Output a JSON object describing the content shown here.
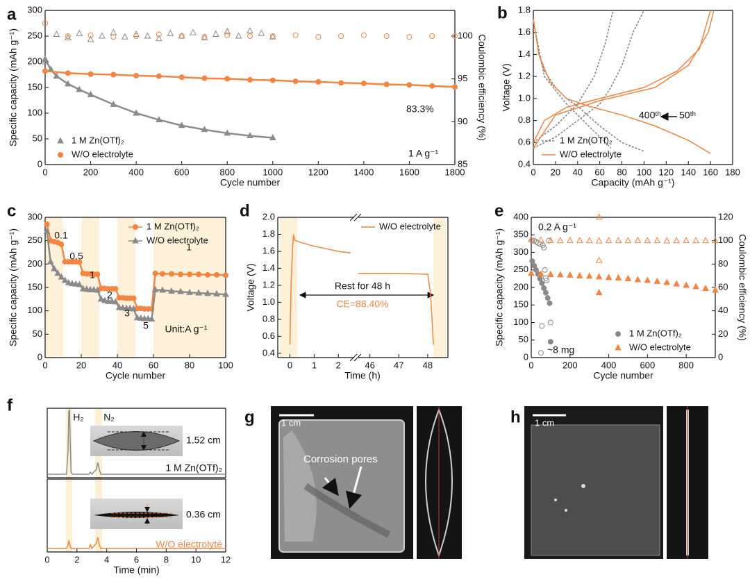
{
  "chart_data": [
    {
      "type": "line",
      "label": "a",
      "xlabel": "Cycle number",
      "ylabel": "Specific capacity (mAh g⁻¹)",
      "y2label": "Coulombic efficiency (%)",
      "xlim": [
        0,
        1800
      ],
      "xticks": [
        0,
        200,
        400,
        600,
        800,
        1000,
        1200,
        1400,
        1600,
        1800
      ],
      "ylim": [
        0,
        300
      ],
      "yticks": [
        0,
        50,
        100,
        150,
        200,
        250,
        300
      ],
      "y2lim": [
        85,
        103
      ],
      "y2ticks": [
        85,
        90,
        95,
        100
      ],
      "legend": "lower left",
      "series": [
        {
          "name": "1 M Zn(OTf)₂",
          "color": "#8a8a8a",
          "marker": "triangle",
          "x": [
            0,
            25,
            50,
            100,
            150,
            200,
            300,
            400,
            500,
            600,
            700,
            800,
            900,
            1000
          ],
          "values": [
            205,
            185,
            172,
            157,
            146,
            136,
            117,
            100,
            87,
            76,
            68,
            61,
            56,
            52
          ]
        },
        {
          "name": "W/O electrolyte",
          "color": "#f4843f",
          "marker": "circle",
          "x": [
            0,
            100,
            200,
            300,
            400,
            500,
            600,
            700,
            800,
            900,
            1000,
            1100,
            1200,
            1300,
            1400,
            1500,
            1600,
            1700,
            1800
          ],
          "values": [
            182,
            178,
            176,
            175,
            173,
            172,
            170,
            168,
            167,
            165,
            164,
            162,
            161,
            159,
            158,
            156,
            155,
            153,
            151
          ]
        },
        {
          "color": "#8a8a8a",
          "marker": "open-triangle",
          "line": false,
          "axis": "y2",
          "x": [
            0,
            50,
            100,
            150,
            200,
            250,
            300,
            350,
            400,
            450,
            500,
            550,
            600,
            650,
            700,
            750,
            800,
            850,
            900,
            950,
            1000
          ],
          "values": [
            97,
            100.2,
            99.8,
            100.3,
            99.6,
            100,
            100.4,
            99.9,
            100.2,
            100,
            99.7,
            100.3,
            100,
            100.4,
            99.8,
            100.2,
            100.5,
            100,
            100.6,
            100.3,
            99.9
          ]
        },
        {
          "color": "#f4843f",
          "marker": "open-circle",
          "line": false,
          "axis": "y2",
          "x": [
            0,
            100,
            200,
            300,
            400,
            500,
            600,
            700,
            800,
            900,
            1000,
            1100,
            1200,
            1300,
            1400,
            1500,
            1600,
            1700,
            1800
          ],
          "values": [
            101.5,
            100,
            100.1,
            99.9,
            100,
            100.2,
            100,
            99.9,
            100.1,
            100,
            100,
            100.1,
            99.9,
            100,
            100.1,
            100,
            99.9,
            100,
            100
          ]
        }
      ],
      "annotations": [
        {
          "text": "83.3%"
        },
        {
          "text": "1 A g⁻¹"
        }
      ]
    },
    {
      "type": "line",
      "label": "b",
      "xlabel": "Capacity (mAh g⁻¹)",
      "ylabel": "Voltage (V)",
      "xlim": [
        0,
        180
      ],
      "xticks": [
        0,
        20,
        40,
        60,
        80,
        100,
        120,
        140,
        160,
        180
      ],
      "ylim": [
        0.4,
        1.8
      ],
      "yticks": [
        0.4,
        0.6,
        0.8,
        {
          "value": 1,
          "label": "1.0"
        },
        1.2,
        1.4,
        1.6,
        1.8
      ],
      "legend": "lower left",
      "series": [
        {
          "name": "1 M Zn(OTf)₂",
          "color": "#7f7f7f",
          "dash": true,
          "x": [
            0,
            5,
            10,
            20,
            30,
            40,
            60,
            80,
            100,
            null,
            0,
            20,
            40,
            60,
            70,
            80,
            90,
            100,
            null,
            0,
            10,
            30,
            50,
            70,
            null,
            0,
            20,
            40,
            55,
            65,
            72
          ],
          "values": [
            1.72,
            1.4,
            1.25,
            1.1,
            1.0,
            0.93,
            0.75,
            0.6,
            0.52,
            null,
            0.55,
            0.65,
            0.8,
            0.95,
            1.1,
            1.3,
            1.6,
            1.8,
            null,
            1.7,
            1.2,
            0.95,
            0.75,
            0.55,
            null,
            0.6,
            0.75,
            0.95,
            1.2,
            1.5,
            1.8
          ]
        },
        {
          "name": "W/O electrolyte",
          "color": "#f4843f",
          "x": [
            0,
            5,
            15,
            30,
            50,
            80,
            110,
            140,
            160,
            null,
            0,
            10,
            30,
            60,
            100,
            130,
            150,
            160,
            null,
            0,
            20,
            60,
            110,
            140,
            158,
            163
          ],
          "values": [
            1.72,
            1.4,
            1.15,
            1.0,
            0.93,
            0.85,
            0.75,
            0.62,
            0.5,
            null,
            0.6,
            0.8,
            0.92,
            1.0,
            1.1,
            1.25,
            1.45,
            1.8,
            null,
            0.55,
            0.85,
            0.98,
            1.1,
            1.3,
            1.6,
            1.8
          ]
        }
      ],
      "annotations": [
        {
          "text": "400ᵗʰ"
        },
        {
          "text": "50ᵗʰ"
        }
      ]
    },
    {
      "type": "line",
      "label": "c",
      "xlabel": "Cycle number",
      "ylabel": "Specific capacity (mAh g⁻¹)",
      "xlim": [
        0,
        100
      ],
      "xticks": [
        0,
        20,
        40,
        60,
        80,
        100
      ],
      "ylim": [
        0,
        300
      ],
      "yticks": [
        0,
        50,
        100,
        150,
        200,
        250,
        300
      ],
      "legend": "upper right",
      "series": [
        {
          "name": "1 M Zn(OTf)₂",
          "color": "#f4843f",
          "marker": "circle",
          "x": [
            1,
            3,
            5,
            7,
            9,
            11,
            13,
            15,
            17,
            19,
            21,
            23,
            25,
            27,
            29,
            31,
            33,
            35,
            37,
            39,
            41,
            43,
            45,
            47,
            49,
            51,
            53,
            55,
            57,
            59,
            61,
            65,
            70,
            75,
            80,
            85,
            90,
            95,
            100
          ],
          "values": [
            285,
            250,
            248,
            246,
            242,
            205,
            205,
            205,
            205,
            204,
            180,
            179,
            179,
            178,
            178,
            148,
            148,
            147,
            147,
            147,
            128,
            128,
            127,
            127,
            127,
            105,
            105,
            104,
            104,
            104,
            180,
            179,
            179,
            178,
            178,
            178,
            177,
            177,
            176
          ]
        },
        {
          "name": "W/O electrolyte",
          "color": "#8a8a8a",
          "marker": "triangle",
          "x": [
            1,
            3,
            5,
            7,
            9,
            11,
            13,
            15,
            17,
            19,
            21,
            23,
            25,
            27,
            29,
            31,
            33,
            35,
            37,
            39,
            41,
            43,
            45,
            47,
            49,
            51,
            53,
            55,
            57,
            59,
            61,
            65,
            70,
            75,
            80,
            85,
            90,
            95,
            100
          ],
          "values": [
            270,
            205,
            190,
            180,
            172,
            165,
            160,
            158,
            157,
            156,
            147,
            146,
            145,
            145,
            144,
            125,
            122,
            120,
            120,
            119,
            107,
            106,
            105,
            105,
            104,
            85,
            84,
            83,
            83,
            82,
            145,
            144,
            142,
            141,
            139,
            138,
            137,
            136,
            135
          ]
        }
      ],
      "annotations": [
        {
          "text": "0.1"
        },
        {
          "text": "0.5"
        },
        {
          "text": "1"
        },
        {
          "text": "2"
        },
        {
          "text": "3"
        },
        {
          "text": "5"
        },
        {
          "text": "1"
        },
        {
          "text": "Unit:A g⁻¹"
        }
      ]
    },
    {
      "type": "line",
      "label": "d",
      "ylabel": "Voltage (V)",
      "xlim": [
        -0.5,
        2.65
      ],
      "xticks": [
        0,
        1,
        2
      ],
      "ylim": [
        0.35,
        2.0
      ],
      "yticks": [
        0.4,
        0.6,
        0.8,
        {
          "value": 1,
          "label": "1.0"
        },
        1.2,
        1.4,
        1.6,
        1.8,
        {
          "value": 2,
          "label": "2.0"
        }
      ],
      "series": [
        {
          "color": "#f4843f",
          "x": [
            0,
            0.05,
            0.1,
            0.15,
            0.2,
            0.5,
            1,
            1.5,
            2,
            2.5
          ],
          "values": [
            0.5,
            1.2,
            1.6,
            1.8,
            1.73,
            1.7,
            1.66,
            1.63,
            1.6,
            1.58
          ]
        }
      ]
    },
    {
      "type": "line",
      "xlabel": "Time (h)",
      "xlim": [
        45.6,
        48.7
      ],
      "xticks": [
        46,
        47,
        48
      ],
      "ylim": [
        0.35,
        2.0
      ],
      "legend": "upper right",
      "series": [
        {
          "name": "W/O electrolyte",
          "color": "#f4843f",
          "x": [
            45.6,
            46,
            47,
            48,
            48.1,
            48.15,
            48.2
          ],
          "values": [
            1.34,
            1.34,
            1.34,
            1.33,
            1.1,
            0.8,
            0.5
          ]
        }
      ],
      "annotations": [
        {
          "text": "Rest for 48 h"
        },
        {
          "text": "CE=88.40%",
          "color": "#f4843f"
        }
      ]
    },
    {
      "type": "scatter",
      "label": "e",
      "xlabel": "Cycle number",
      "ylabel": "Specific capacity (mAh g⁻¹)",
      "y2label": "Coulombic efficiency (%)",
      "xlim": [
        0,
        950
      ],
      "xticks": [
        0,
        200,
        400,
        600,
        800
      ],
      "ylim": [
        0,
        400
      ],
      "yticks": [
        0,
        50,
        100,
        150,
        200,
        250,
        300,
        350,
        400
      ],
      "y2lim": [
        0,
        120
      ],
      "y2ticks": [
        0,
        20,
        40,
        60,
        80,
        100,
        120
      ],
      "legend": "lower right",
      "series": [
        {
          "name": "1 M Zn(OTf)₂",
          "color": "#8a8a8a",
          "marker": "circle",
          "x": [
            5,
            15,
            25,
            35,
            45,
            55,
            65,
            75,
            85,
            95,
            100
          ],
          "values": [
            275,
            262,
            250,
            238,
            225,
            212,
            198,
            185,
            170,
            155,
            45
          ]
        },
        {
          "name": "W/O electrolyte",
          "color": "#f4843f",
          "marker": "triangle",
          "x": [
            0,
            50,
            100,
            150,
            200,
            250,
            300,
            350,
            400,
            450,
            500,
            550,
            600,
            650,
            700,
            750,
            800,
            850,
            900,
            950,
            350
          ],
          "values": [
            240,
            238,
            237,
            236,
            235,
            233,
            232,
            230,
            228,
            227,
            225,
            222,
            220,
            217,
            214,
            210,
            206,
            202,
            197,
            192,
            185
          ]
        },
        {
          "color": "#8a8a8a",
          "marker": "open-circle",
          "axis": "y2",
          "x": [
            5,
            15,
            25,
            35,
            45,
            50,
            55,
            60,
            65,
            70,
            75,
            80,
            90,
            100
          ],
          "values": [
            100,
            100,
            99,
            98,
            97,
            4,
            27,
            96,
            94,
            75,
            68,
            66,
            100,
            30
          ]
        },
        {
          "color": "#f4843f",
          "marker": "open-triangle",
          "axis": "y2",
          "x": [
            0,
            50,
            100,
            150,
            200,
            250,
            300,
            350,
            400,
            450,
            500,
            550,
            600,
            650,
            700,
            750,
            800,
            850,
            900,
            950,
            350,
            350
          ],
          "values": [
            101,
            100.5,
            100,
            100,
            100.2,
            100,
            100,
            99.8,
            100,
            100,
            100,
            100.2,
            100,
            100,
            99.9,
            100,
            100,
            100,
            100,
            100,
            83,
            120
          ]
        }
      ],
      "annotations": [
        {
          "text": "0.2 A g⁻¹"
        },
        {
          "text": "~8 mg"
        }
      ]
    },
    {
      "type": "line",
      "label": "f",
      "xlim": [
        0,
        12
      ],
      "ylim": [
        0,
        1
      ],
      "series": [
        {
          "color": "#8a8a8a",
          "x": [
            0,
            1.3,
            1.4,
            1.45,
            1.5,
            1.55,
            1.6,
            1.7,
            2.8,
            2.9,
            3.0,
            3.3,
            3.4,
            3.5,
            3.6,
            12
          ],
          "values": [
            0.05,
            0.05,
            0.4,
            0.95,
            0.98,
            0.5,
            0.08,
            0.05,
            0.05,
            0.08,
            0.05,
            0.12,
            0.22,
            0.12,
            0.05,
            0.05
          ]
        }
      ],
      "annotations": [
        {
          "text": "H₂"
        },
        {
          "text": "N₂"
        },
        {
          "text": "1.52 cm"
        },
        {
          "text": "1 M Zn(OTf)₂"
        }
      ]
    },
    {
      "type": "line",
      "xlabel": "Time (min)",
      "xlim": [
        0,
        12
      ],
      "xticks": [
        0,
        2,
        4,
        6,
        8,
        10,
        12
      ],
      "ylim": [
        0,
        1
      ],
      "series": [
        {
          "color": "#f4843f",
          "x": [
            0,
            1.3,
            1.4,
            1.45,
            1.5,
            1.55,
            1.6,
            1.7,
            2.8,
            2.9,
            3.0,
            3.3,
            3.4,
            3.5,
            3.6,
            12
          ],
          "values": [
            0.05,
            0.05,
            0.1,
            0.15,
            0.12,
            0.07,
            0.05,
            0.05,
            0.05,
            0.1,
            0.05,
            0.12,
            0.2,
            0.1,
            0.05,
            0.05
          ]
        }
      ],
      "annotations": [
        {
          "text": "0.36 cm"
        },
        {
          "text": "W/O electrolyte",
          "color": "#f4843f"
        }
      ]
    }
  ],
  "images": [
    {
      "label": "g",
      "scale": "1 cm",
      "annotation": "Corrosion pores"
    },
    {
      "label": "h",
      "scale": "1 cm"
    }
  ]
}
